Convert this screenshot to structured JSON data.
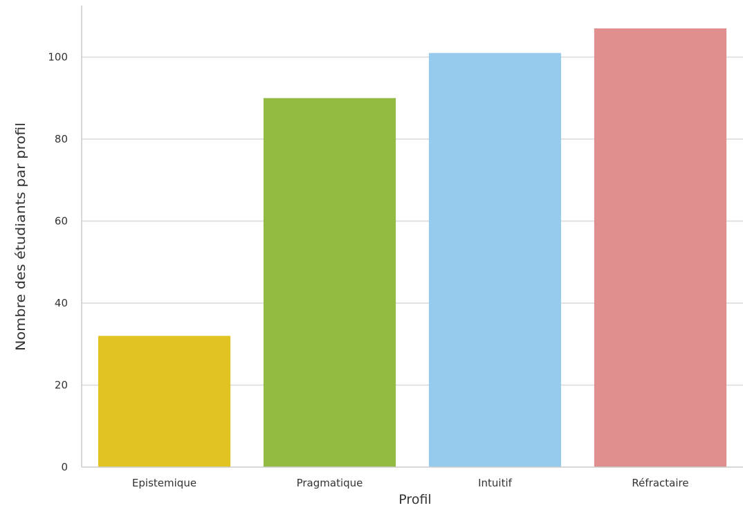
{
  "chart_data": {
    "type": "bar",
    "title": "",
    "xlabel": "Profil",
    "ylabel": "Nombre des étudiants par profil",
    "categories": [
      "Epistemique",
      "Pragmatique",
      "Intuitif",
      "Réfractaire"
    ],
    "values": [
      32,
      90,
      101,
      107
    ],
    "colors": [
      "#e1c322",
      "#93bb44",
      "#96cbed",
      "#e18e8e"
    ],
    "yticks": [
      0,
      20,
      40,
      60,
      80,
      100
    ],
    "ylim": [
      0,
      112.5
    ],
    "grid": "horizontal",
    "legend": "none"
  }
}
